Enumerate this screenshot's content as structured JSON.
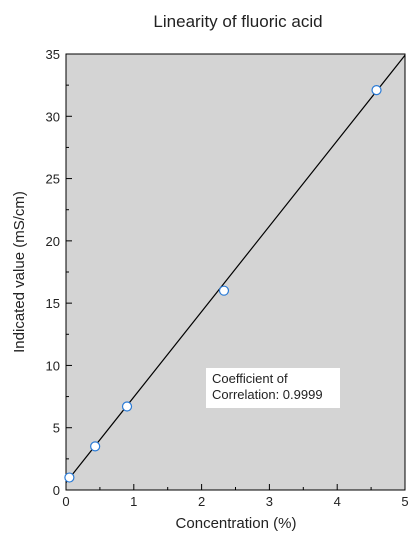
{
  "chart_data": {
    "type": "scatter",
    "title": "Linearity of fluoric acid",
    "xlabel": "Concentration (%)",
    "ylabel": "Indicated value (mS/cm)",
    "xlim": [
      0,
      5
    ],
    "ylim": [
      0,
      35
    ],
    "x_ticks": [
      "0",
      "1",
      "2",
      "3",
      "4",
      "5"
    ],
    "y_ticks": [
      "0",
      "5",
      "10",
      "15",
      "20",
      "25",
      "30",
      "35"
    ],
    "grid": false,
    "legend": "none",
    "plot_background": "#d4d4d4",
    "marker_color": "#2b7bd6",
    "line_color": "#000000",
    "points": [
      {
        "x": 0.05,
        "y": 1.0
      },
      {
        "x": 0.43,
        "y": 3.5
      },
      {
        "x": 0.9,
        "y": 6.7
      },
      {
        "x": 2.33,
        "y": 16.0
      },
      {
        "x": 4.58,
        "y": 32.1
      }
    ],
    "fit_line": {
      "x": [
        0,
        5
      ],
      "y": [
        0.6,
        34.9
      ]
    },
    "annotation": {
      "lines": [
        "Coefficient of",
        "Correlation: 0.9999"
      ]
    }
  }
}
